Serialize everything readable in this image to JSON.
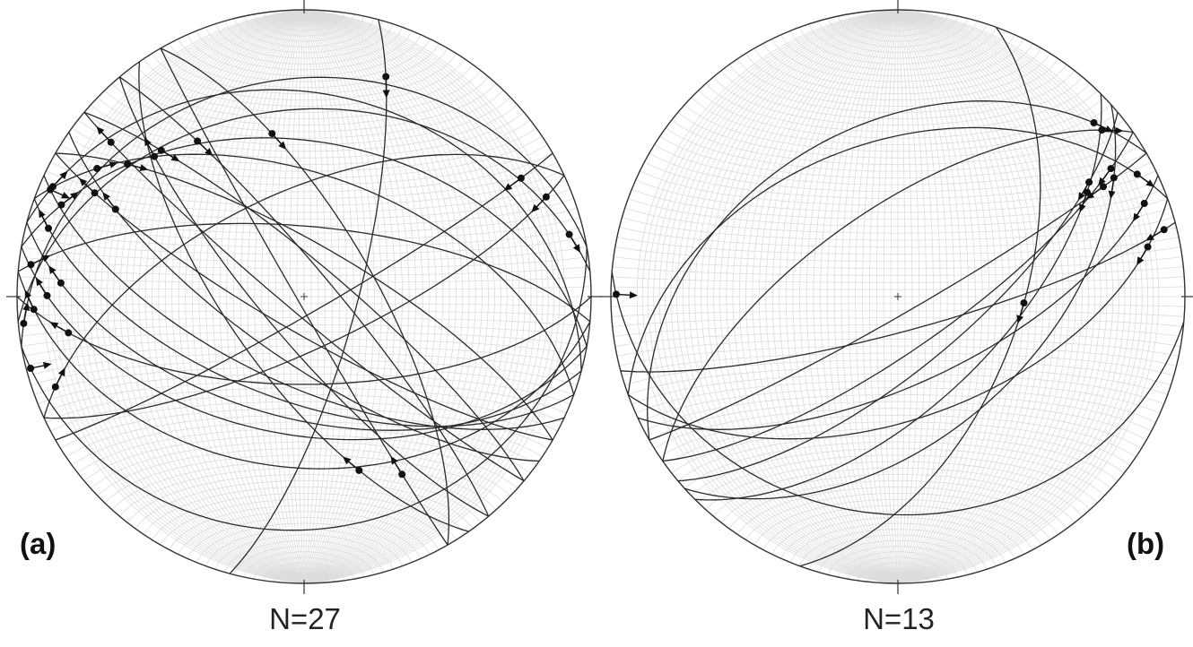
{
  "figure": {
    "projection": "equal-area stereonet (lower hemisphere) — fault planes with slickenline arrows",
    "colors": {
      "net": "#dcdcdc",
      "circle": "#333333",
      "planes": "#2a2a2a",
      "points": "#111111"
    },
    "panels": [
      {
        "label": "(a)",
        "count_text": "N=27",
        "n": 27,
        "faults": [
          {
            "strike": 95,
            "dip": 40,
            "rake": 170
          },
          {
            "strike": 100,
            "dip": 50,
            "rake": 165
          },
          {
            "strike": 105,
            "dip": 55,
            "rake": 160
          },
          {
            "strike": 110,
            "dip": 60,
            "rake": 170
          },
          {
            "strike": 115,
            "dip": 65,
            "rake": 175
          },
          {
            "strike": 285,
            "dip": 30,
            "rake": 10
          },
          {
            "strike": 280,
            "dip": 45,
            "rake": 15
          },
          {
            "strike": 290,
            "dip": 55,
            "rake": 20
          },
          {
            "strike": 275,
            "dip": 70,
            "rake": 5
          },
          {
            "strike": 300,
            "dip": 75,
            "rake": 25
          },
          {
            "strike": 120,
            "dip": 80,
            "rake": 160
          },
          {
            "strike": 125,
            "dip": 72,
            "rake": 150
          },
          {
            "strike": 130,
            "dip": 85,
            "rake": 165
          },
          {
            "strike": 140,
            "dip": 78,
            "rake": 150
          },
          {
            "strike": 145,
            "dip": 68,
            "rake": 40
          },
          {
            "strike": 150,
            "dip": 88,
            "rake": 30
          },
          {
            "strike": 320,
            "dip": 82,
            "rake": 35
          },
          {
            "strike": 330,
            "dip": 70,
            "rake": 45
          },
          {
            "strike": 310,
            "dip": 80,
            "rake": 30
          },
          {
            "strike": 65,
            "dip": 75,
            "rake": 10
          },
          {
            "strike": 60,
            "dip": 85,
            "rake": 15
          },
          {
            "strike": 80,
            "dip": 20,
            "rake": 175
          },
          {
            "strike": 260,
            "dip": 25,
            "rake": 5
          },
          {
            "strike": 265,
            "dip": 35,
            "rake": 170
          },
          {
            "strike": 90,
            "dip": 65,
            "rake": 160
          },
          {
            "strike": 15,
            "dip": 75,
            "rake": 20
          },
          {
            "strike": 245,
            "dip": 60,
            "rake": 10
          }
        ]
      },
      {
        "label": "(b)",
        "count_text": "N=13",
        "n": 13,
        "faults": [
          {
            "strike": 60,
            "dip": 85,
            "rake": 20
          },
          {
            "strike": 55,
            "dip": 75,
            "rake": 15
          },
          {
            "strike": 50,
            "dip": 70,
            "rake": 25
          },
          {
            "strike": 45,
            "dip": 60,
            "rake": 30
          },
          {
            "strike": 48,
            "dip": 50,
            "rake": 20
          },
          {
            "strike": 65,
            "dip": 65,
            "rake": 10
          },
          {
            "strike": 70,
            "dip": 55,
            "rake": 15
          },
          {
            "strike": 75,
            "dip": 80,
            "rake": 5
          },
          {
            "strike": 250,
            "dip": 45,
            "rake": 170
          },
          {
            "strike": 240,
            "dip": 40,
            "rake": 165
          },
          {
            "strike": 235,
            "dip": 65,
            "rake": 170
          },
          {
            "strike": 95,
            "dip": 25,
            "rake": 175
          },
          {
            "strike": 20,
            "dip": 55,
            "rake": 80
          }
        ]
      }
    ]
  }
}
